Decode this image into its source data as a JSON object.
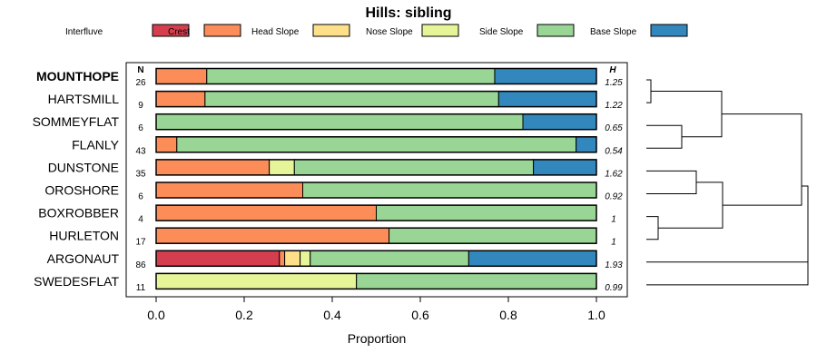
{
  "chart_data": {
    "type": "bar",
    "stacked": true,
    "orientation": "horizontal",
    "title": "Hills: sibling",
    "xlabel": "Proportion",
    "ylabel": "",
    "xlim": [
      0,
      1
    ],
    "x_ticks": [
      "0.0",
      "0.2",
      "0.4",
      "0.6",
      "0.8",
      "1.0"
    ],
    "n_header": "N",
    "h_header": "H",
    "legend": [
      {
        "name": "Interfluve",
        "color": "#D53E4F"
      },
      {
        "name": "Crest",
        "color": "#FC8D59"
      },
      {
        "name": "Head Slope",
        "color": "#FEE08B"
      },
      {
        "name": "Nose Slope",
        "color": "#E6F598"
      },
      {
        "name": "Side Slope",
        "color": "#99D594"
      },
      {
        "name": "Base Slope",
        "color": "#3288BD"
      }
    ],
    "categories": [
      "MOUNTHOPE",
      "HARTSMILL",
      "SOMMEYFLAT",
      "FLANLY",
      "DUNSTONE",
      "OROSHORE",
      "BOXROBBER",
      "HURLETON",
      "ARGONAUT",
      "SWEDESFLAT"
    ],
    "highlighted_category": "MOUNTHOPE",
    "n_values": [
      "26",
      "9",
      "6",
      "43",
      "35",
      "6",
      "4",
      "17",
      "86",
      "11"
    ],
    "h_values": [
      "1.25",
      "1.22",
      "0.65",
      "0.54",
      "1.62",
      "0.92",
      "1",
      "1",
      "1.93",
      "0.99"
    ],
    "series": [
      {
        "name": "Interfluve",
        "values": [
          0,
          0,
          0,
          0,
          0,
          0,
          0,
          0,
          0.28,
          0
        ]
      },
      {
        "name": "Crest",
        "values": [
          0.115,
          0.111,
          0,
          0.047,
          0.257,
          0.333,
          0.5,
          0.529,
          0.012,
          0
        ]
      },
      {
        "name": "Head Slope",
        "values": [
          0,
          0,
          0,
          0,
          0,
          0,
          0,
          0,
          0.035,
          0
        ]
      },
      {
        "name": "Nose Slope",
        "values": [
          0,
          0,
          0,
          0,
          0.057,
          0,
          0,
          0,
          0.023,
          0.455
        ]
      },
      {
        "name": "Side Slope",
        "values": [
          0.654,
          0.667,
          0.833,
          0.907,
          0.543,
          0.667,
          0.5,
          0.471,
          0.36,
          0.545
        ]
      },
      {
        "name": "Base Slope",
        "values": [
          0.231,
          0.222,
          0.167,
          0.046,
          0.143,
          0,
          0,
          0,
          0.29,
          0
        ]
      }
    ],
    "dendrogram": {
      "merges": [
        {
          "left": "MOUNTHOPE",
          "right": "HARTSMILL"
        },
        {
          "left": "SOMMEYFLAT",
          "right": "FLANLY"
        },
        {
          "left": "MOUNTHOPE-HARTSMILL",
          "right": "SOMMEYFLAT-FLANLY"
        },
        {
          "left": "DUNSTONE",
          "right": "OROSHORE"
        },
        {
          "left": "BOXROBBER",
          "right": "HURLETON"
        },
        {
          "left": "DUNSTONE-OROSHORE",
          "right": "BOXROBBER-HURLETON"
        },
        {
          "left": "upper-group",
          "right": "middle-group"
        },
        {
          "left": "ARGONAUT",
          "right": "SWEDESFLAT"
        },
        {
          "left": "all-upper",
          "right": "ARGONAUT-SWEDESFLAT"
        }
      ]
    }
  }
}
